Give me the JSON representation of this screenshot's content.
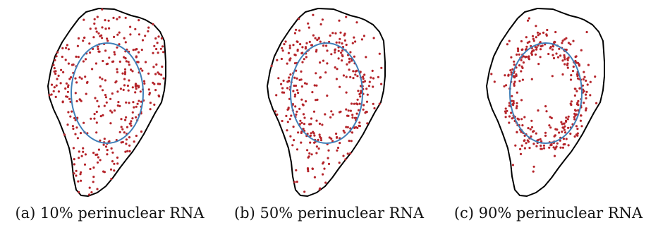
{
  "figure": {
    "panels": [
      {
        "label": "(a)",
        "caption": "10% perinuclear RNA",
        "perinuclear_fraction": 0.1
      },
      {
        "label": "(b)",
        "caption": "50% perinuclear RNA",
        "perinuclear_fraction": 0.5
      },
      {
        "label": "(c)",
        "caption": "90% perinuclear RNA",
        "perinuclear_fraction": 0.9
      }
    ]
  },
  "colors": {
    "cell_outline": "#000000",
    "nucleus_outline": "#3f7fb8",
    "rna_dot": "#b5242a"
  }
}
